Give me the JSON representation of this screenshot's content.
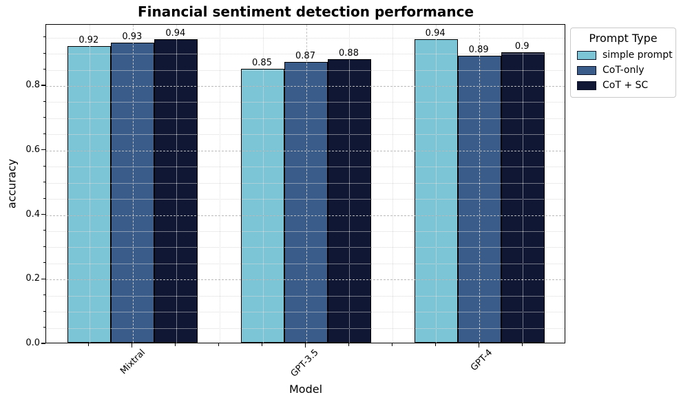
{
  "chart_data": {
    "type": "bar",
    "title": "Financial sentiment detection performance",
    "xlabel": "Model",
    "ylabel": "accuracy",
    "categories": [
      "Mixtral",
      "GPT-3.5",
      "GPT-4"
    ],
    "series": [
      {
        "name": "simple prompt",
        "color": "#7cc5d6",
        "values": [
          0.92,
          0.85,
          0.94
        ]
      },
      {
        "name": "CoT-only",
        "color": "#3a5c8a",
        "values": [
          0.93,
          0.87,
          0.89
        ]
      },
      {
        "name": "CoT + SC",
        "color": "#101734",
        "values": [
          0.94,
          0.88,
          0.9
        ]
      }
    ],
    "bar_value_labels": [
      [
        "0.92",
        "0.93",
        "0.94"
      ],
      [
        "0.85",
        "0.87",
        "0.88"
      ],
      [
        "0.94",
        "0.89",
        "0.9"
      ]
    ],
    "ylim": [
      0,
      0.99
    ],
    "yticks": [
      "0.0",
      "0.2",
      "0.4",
      "0.6",
      "0.8"
    ],
    "y_minor_step": 0.05,
    "x_minor_divisions_per_category": 4,
    "grid": "major and minor, dashed, drawn above bars",
    "legend": {
      "title": "Prompt Type",
      "entries": [
        "simple prompt",
        "CoT-only",
        "CoT + SC"
      ],
      "position": "outside upper right"
    },
    "colors": {
      "bar_edge": "#000000",
      "axis": "#000000",
      "grid_major": "#b9b9b9",
      "grid_minor": "#d9d9d9",
      "legend_border": "#c9c9c9",
      "background": "#ffffff"
    }
  }
}
